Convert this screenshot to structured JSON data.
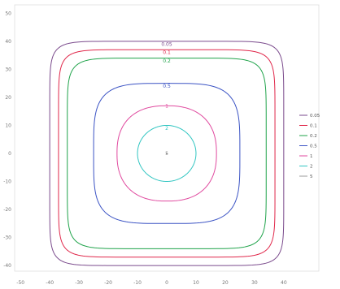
{
  "chart_data": {
    "type": "line",
    "title": "",
    "xlabel": "",
    "ylabel": "",
    "xlim": [
      -52,
      52
    ],
    "ylim": [
      -42,
      53
    ],
    "x_ticks": [
      "-50",
      "-40",
      "-30",
      "-20",
      "-10",
      "0",
      "10",
      "20",
      "30",
      "40"
    ],
    "y_ticks": [
      "50",
      "40",
      "30",
      "20",
      "10",
      "0",
      "-10",
      "-20",
      "-30",
      "-40"
    ],
    "grid": false,
    "legend_position": "right",
    "legend": [
      "0.05",
      "0.1",
      "0.2",
      "0.5",
      "1",
      "2",
      "5"
    ],
    "series": [
      {
        "name": "0.05",
        "color": "#7a4a8c",
        "halfwidth": 40,
        "halfheight": 40,
        "exp": 10,
        "label_y": 39
      },
      {
        "name": "0.1",
        "color": "#e0274a",
        "halfwidth": 37,
        "halfheight": 37,
        "exp": 9,
        "label_y": 36
      },
      {
        "name": "0.2",
        "color": "#1fa34a",
        "halfwidth": 34,
        "halfheight": 34,
        "exp": 8,
        "label_y": 33
      },
      {
        "name": "0.5",
        "color": "#3b53c4",
        "halfwidth": 25,
        "halfheight": 25,
        "exp": 4,
        "label_y": 24
      },
      {
        "name": "1",
        "color": "#e04a9f",
        "halfwidth": 17,
        "halfheight": 17,
        "exp": 2.4,
        "label_y": 17
      },
      {
        "name": "2",
        "color": "#33c6c2",
        "halfwidth": 10,
        "halfheight": 10,
        "exp": 2,
        "label_y": 9
      },
      {
        "name": "5",
        "color": "#9b9b9b",
        "halfwidth": 0,
        "halfheight": 0,
        "exp": 2,
        "label_y": 0
      }
    ]
  }
}
